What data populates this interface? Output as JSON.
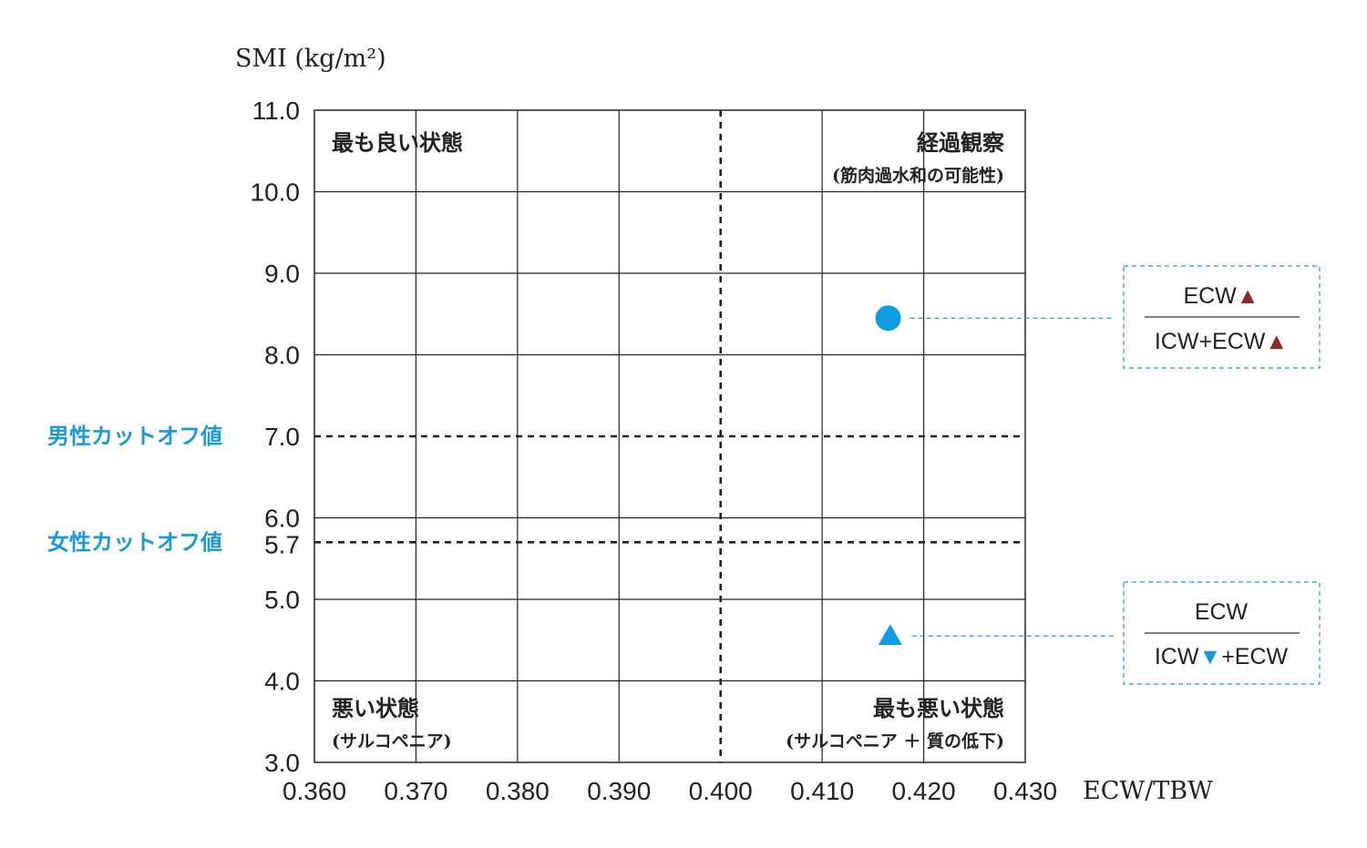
{
  "chart_data": {
    "type": "scatter",
    "xlabel": "ECW/TBW",
    "ylabel": "SMI (kg/m²)",
    "x_ticks": [
      "0.360",
      "0.370",
      "0.380",
      "0.390",
      "0.400",
      "0.410",
      "0.420",
      "0.430"
    ],
    "y_ticks": [
      "11.0",
      "10.0",
      "9.0",
      "8.0",
      "7.0",
      "6.0",
      "5.0",
      "4.0",
      "3.0"
    ],
    "xlim": [
      0.36,
      0.43
    ],
    "ylim": [
      3.0,
      11.0
    ],
    "grid": true,
    "x_threshold": 0.4,
    "cutoffs": [
      {
        "label": "男性カットオフ値",
        "value": 7.0,
        "tick": "7.0"
      },
      {
        "label": "女性カットオフ値",
        "value": 5.7,
        "tick": "5.7"
      }
    ],
    "quadrants": {
      "top_left": {
        "title": "最も良い状態",
        "sub": ""
      },
      "top_right": {
        "title": "経過観察",
        "sub": "(筋肉過水和の可能性)"
      },
      "bottom_left": {
        "title": "悪い状態",
        "sub": "(サルコペニア)"
      },
      "bottom_right": {
        "title": "最も悪い状態",
        "sub": "(サルコペニア ＋ 質の低下)"
      }
    },
    "points": [
      {
        "shape": "circle",
        "x": 0.4165,
        "y": 8.45,
        "color": "#0e9de0",
        "annotation": {
          "numerator": "ECW",
          "numerator_arrow": "▲",
          "denominator_left": "ICW+ECW",
          "denominator_mid": "",
          "denominator_right": "▲",
          "arrow_color": "#8b2b2b"
        }
      },
      {
        "shape": "triangle",
        "x": 0.4167,
        "y": 4.55,
        "color": "#0e9de0",
        "annotation": {
          "numerator": "ECW",
          "numerator_arrow": "",
          "denominator_left": "ICW",
          "denominator_mid": "▼",
          "denominator_right": "+ECW",
          "arrow_color": "#1a9ad6"
        }
      }
    ]
  }
}
